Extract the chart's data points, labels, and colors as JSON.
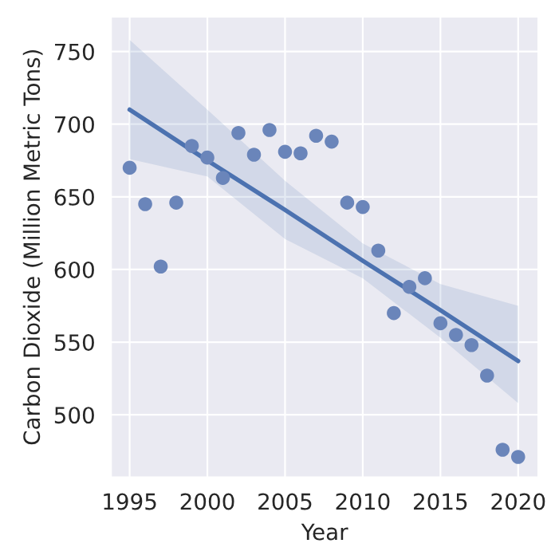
{
  "chart_data": {
    "type": "scatter",
    "xlabel": "Year",
    "ylabel": "Carbon Dioxide (Million Metric Tons)",
    "xlim": [
      1993.8,
      2021.3
    ],
    "ylim": [
      457,
      774
    ],
    "xticks": [
      1995,
      2000,
      2005,
      2010,
      2015,
      2020
    ],
    "yticks": [
      500,
      550,
      600,
      650,
      700,
      750
    ],
    "grid": true,
    "series": [
      {
        "marker": "circle",
        "color": "#6a85ba",
        "x": [
          1995,
          1996,
          1997,
          1998,
          1999,
          2000,
          2001,
          2002,
          2003,
          2004,
          2005,
          2006,
          2007,
          2008,
          2009,
          2010,
          2011,
          2012,
          2013,
          2014,
          2015,
          2016,
          2017,
          2018,
          2019,
          2020
        ],
        "values": [
          670,
          645,
          602,
          646,
          685,
          677,
          663,
          694,
          679,
          696,
          681,
          680,
          692,
          688,
          646,
          643,
          613,
          570,
          588,
          594,
          563,
          555,
          548,
          527,
          476,
          471
        ]
      },
      {
        "type": "line",
        "marker": "none",
        "color": "#4c72b0",
        "line_style": "solid",
        "x": [
          1995,
          2000,
          2005,
          2010,
          2015,
          2020
        ],
        "values": [
          710,
          675,
          641,
          606,
          572,
          537
        ],
        "lower": [
          676,
          664,
          621,
          594,
          553,
          508
        ],
        "upper": [
          758,
          710,
          661,
          618,
          590,
          575
        ]
      }
    ]
  }
}
